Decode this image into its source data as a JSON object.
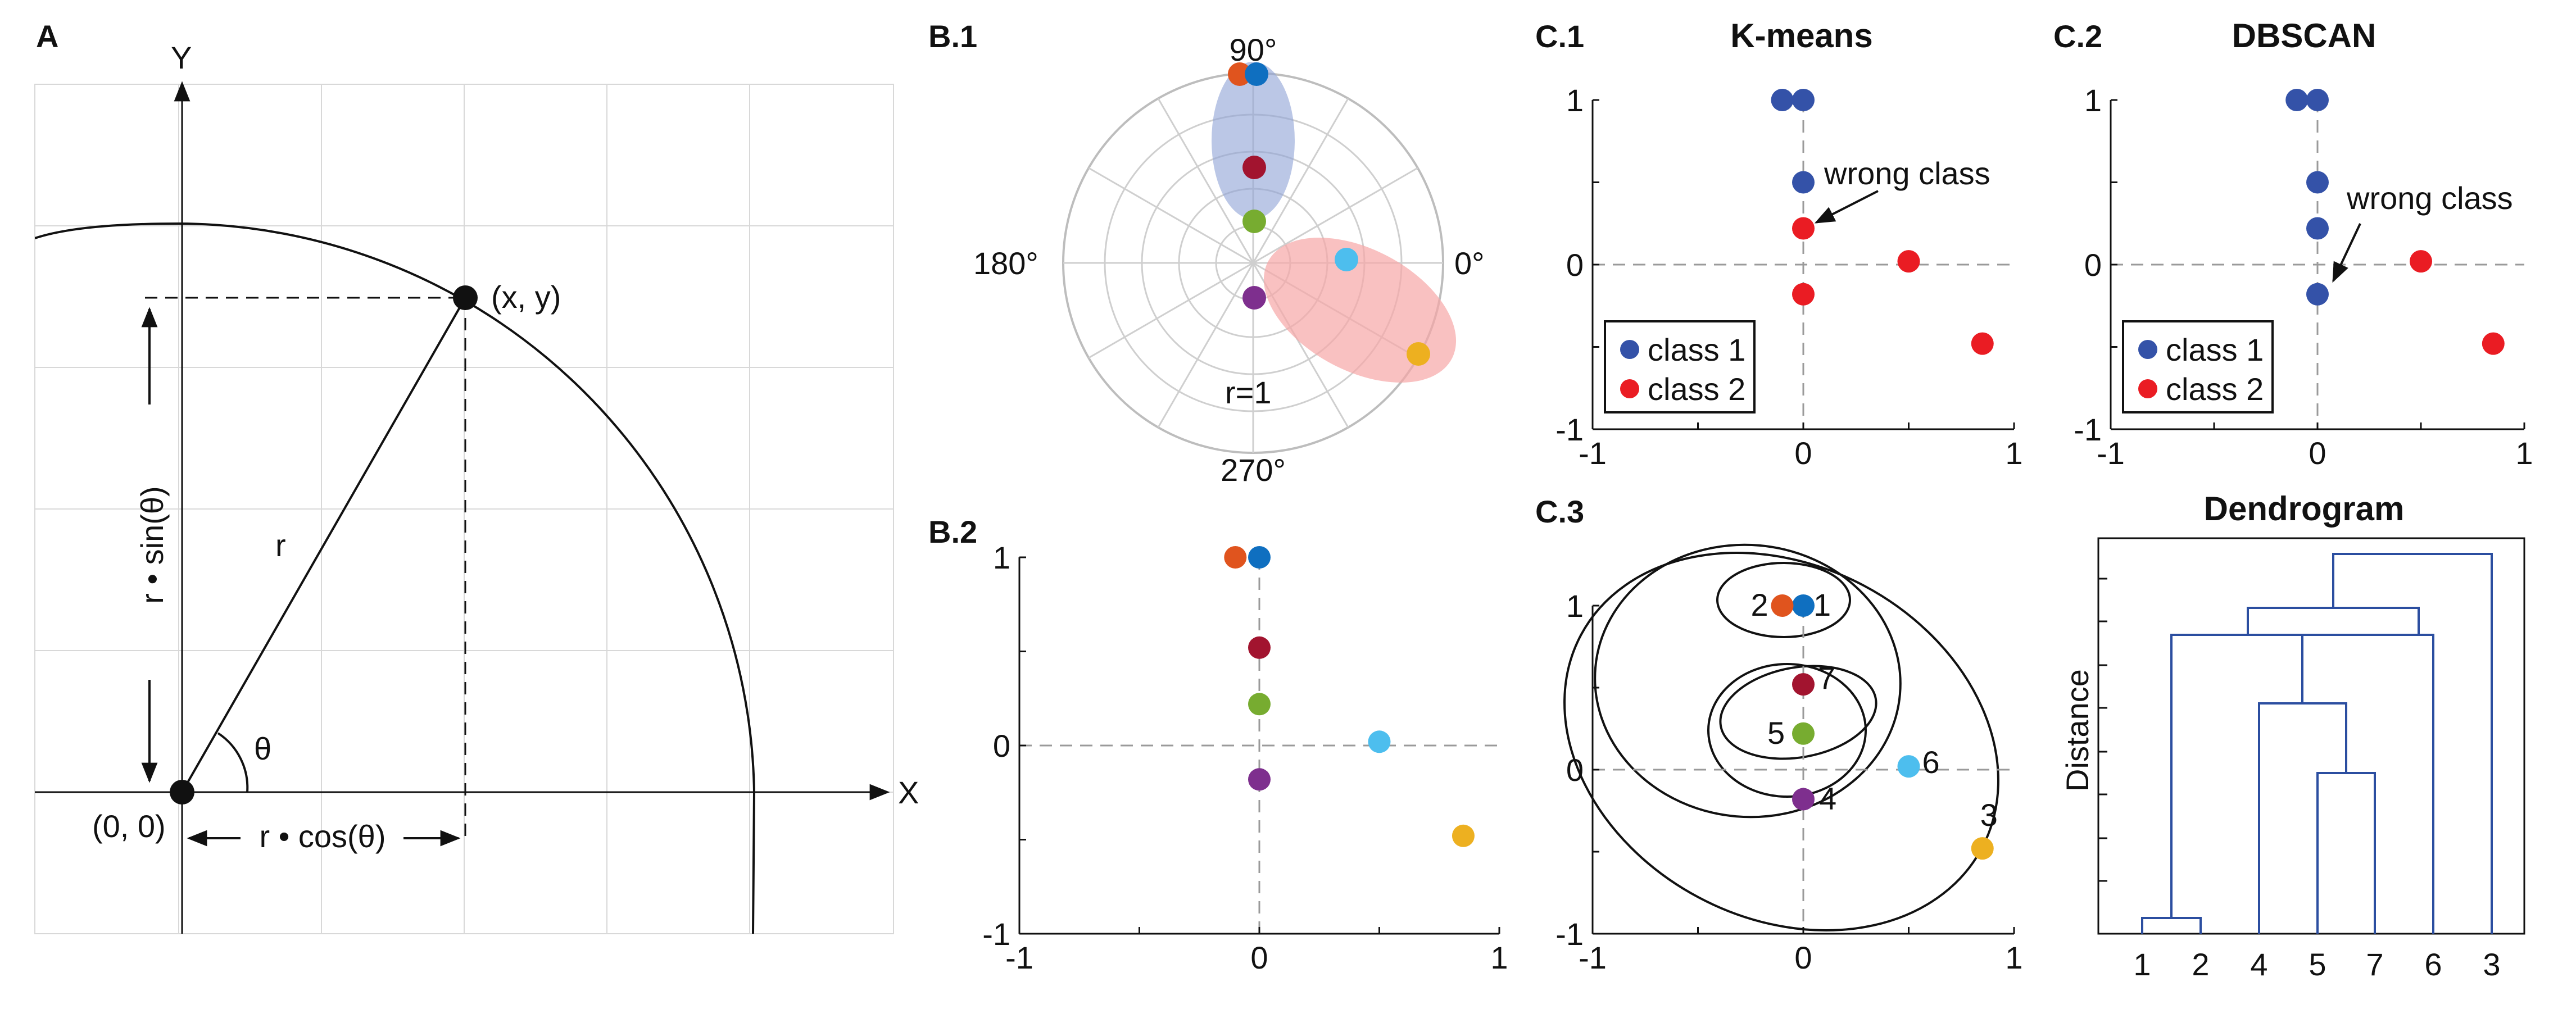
{
  "panels": {
    "A": {
      "label": "A",
      "x_axis": "X",
      "y_axis": "Y",
      "point_label": "(x, y)",
      "origin_label": "(0, 0)",
      "r_label": "r",
      "theta_label": "θ",
      "sin_label": "r • sin(θ)",
      "cos_label": "r • cos(θ)"
    },
    "B1": {
      "label": "B.1",
      "angle_labels": [
        "90°",
        "180°",
        "0°",
        "270°"
      ],
      "radius_label": "r=1"
    },
    "B2": {
      "label": "B.2",
      "ticks_y": [
        "1",
        "0",
        "-1"
      ],
      "ticks_x": [
        "-1",
        "0",
        "1"
      ]
    },
    "C1": {
      "label": "C.1",
      "title": "K-means",
      "annotation": "wrong class",
      "ticks_y": [
        "1",
        "0",
        "-1"
      ],
      "ticks_x": [
        "-1",
        "0",
        "1"
      ],
      "legend": [
        "class 1",
        "class 2"
      ]
    },
    "C2": {
      "label": "C.2",
      "title": "DBSCAN",
      "annotation": "wrong class",
      "ticks_y": [
        "1",
        "0",
        "-1"
      ],
      "ticks_x": [
        "-1",
        "0",
        "1"
      ],
      "legend": [
        "class 1",
        "class 2"
      ]
    },
    "C3": {
      "label": "C.3",
      "ticks_y": [
        "1",
        "0",
        "-1"
      ],
      "ticks_x": [
        "-1",
        "0",
        "1"
      ],
      "point_ids": [
        "1",
        "2",
        "3",
        "4",
        "5",
        "6",
        "7"
      ]
    },
    "dendrogram": {
      "title": "Dendrogram",
      "ylabel": "Distance",
      "leaf_order": [
        "1",
        "2",
        "4",
        "5",
        "7",
        "6",
        "3"
      ]
    }
  },
  "colors": {
    "p1": "#0f6fc0",
    "p2": "#e0541e",
    "p3": "#edb020",
    "p4": "#7e2f8e",
    "p5": "#77ac30",
    "p6": "#4dbeee",
    "p7": "#a2142f",
    "class1": "#3452a8",
    "class2": "#ea1c23",
    "dendro": "#2b4ea0"
  },
  "chart_data": [
    {
      "type": "scatter",
      "panel": "B.2",
      "x": [
        0.0,
        -0.1,
        0.85,
        0.0,
        0.0,
        0.5,
        0.0
      ],
      "y": [
        1.0,
        1.0,
        -0.48,
        -0.18,
        0.22,
        0.02,
        0.52
      ],
      "point_ids": [
        "1",
        "2",
        "3",
        "4",
        "5",
        "6",
        "7"
      ],
      "xlim": [
        -1,
        1
      ],
      "ylim": [
        -1,
        1
      ]
    },
    {
      "type": "scatter",
      "panel": "C.1",
      "title": "K-means",
      "x": [
        -0.1,
        0.0,
        0.0,
        0.0,
        0.0,
        0.5,
        0.85
      ],
      "y": [
        1.0,
        1.0,
        0.5,
        0.22,
        -0.18,
        0.02,
        -0.48
      ],
      "class": [
        1,
        1,
        1,
        2,
        2,
        2,
        2
      ],
      "xlim": [
        -1,
        1
      ],
      "ylim": [
        -1,
        1
      ]
    },
    {
      "type": "scatter",
      "panel": "C.2",
      "title": "DBSCAN",
      "x": [
        -0.1,
        0.0,
        0.0,
        0.0,
        0.0,
        0.5,
        0.85
      ],
      "y": [
        1.0,
        1.0,
        0.5,
        0.22,
        -0.18,
        0.02,
        -0.48
      ],
      "class": [
        1,
        1,
        1,
        1,
        1,
        2,
        2
      ],
      "xlim": [
        -1,
        1
      ],
      "ylim": [
        -1,
        1
      ]
    },
    {
      "type": "scatter",
      "panel": "C.3",
      "x": [
        0.0,
        -0.1,
        0.85,
        0.0,
        0.0,
        0.5,
        0.0
      ],
      "y": [
        1.0,
        1.0,
        -0.48,
        -0.18,
        0.22,
        0.02,
        0.52
      ],
      "point_ids": [
        "1",
        "2",
        "3",
        "4",
        "5",
        "6",
        "7"
      ],
      "xlim": [
        -1,
        1
      ],
      "ylim": [
        -1,
        1
      ]
    }
  ]
}
